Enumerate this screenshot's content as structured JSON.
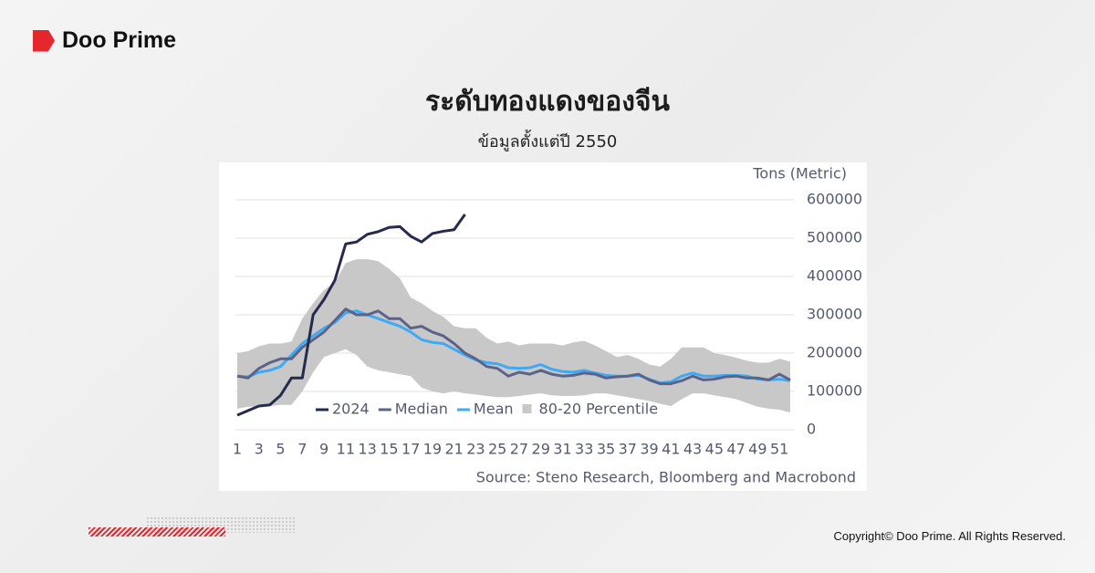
{
  "brand": "Doo Prime",
  "copyright": "Copyright© Doo Prime. All Rights Reserved.",
  "chart_data": {
    "type": "line",
    "title": "ระดับทองแดงของจีน",
    "subtitle": "ข้อมูลตั้งแต่ปี 2550",
    "y_label": "Tons (Metric)",
    "source": "Source: Steno Research, Bloomberg and Macrobond",
    "x": [
      1,
      2,
      3,
      4,
      5,
      6,
      7,
      8,
      9,
      10,
      11,
      12,
      13,
      14,
      15,
      16,
      17,
      18,
      19,
      20,
      21,
      22,
      23,
      24,
      25,
      26,
      27,
      28,
      29,
      30,
      31,
      32,
      33,
      34,
      35,
      36,
      37,
      38,
      39,
      40,
      41,
      42,
      43,
      44,
      45,
      46,
      47,
      48,
      49,
      50,
      51,
      52
    ],
    "xlim": [
      1,
      52
    ],
    "xticks": [
      1,
      3,
      5,
      7,
      9,
      11,
      13,
      15,
      17,
      19,
      21,
      23,
      25,
      27,
      29,
      31,
      33,
      35,
      37,
      39,
      41,
      43,
      45,
      47,
      49,
      51
    ],
    "ylim": [
      0,
      600000
    ],
    "yticks": [
      0,
      100000,
      200000,
      300000,
      400000,
      500000,
      600000
    ],
    "grid": true,
    "series": [
      {
        "name": "2024",
        "color": "#262a4f",
        "values": [
          38000,
          50000,
          62000,
          65000,
          90000,
          135000,
          135000,
          300000,
          340000,
          390000,
          485000,
          490000,
          510000,
          517000,
          528000,
          530000,
          505000,
          490000,
          512000,
          518000,
          522000,
          562000,
          null,
          null,
          null,
          null,
          null,
          null,
          null,
          null,
          null,
          null,
          null,
          null,
          null,
          null,
          null,
          null,
          null,
          null,
          null,
          null,
          null,
          null,
          null,
          null,
          null,
          null,
          null,
          null,
          null,
          null
        ]
      },
      {
        "name": "Median",
        "color": "#5b6389",
        "values": [
          140000,
          135000,
          160000,
          175000,
          185000,
          185000,
          215000,
          235000,
          255000,
          285000,
          315000,
          300000,
          300000,
          310000,
          290000,
          290000,
          265000,
          270000,
          255000,
          245000,
          225000,
          200000,
          185000,
          165000,
          160000,
          140000,
          150000,
          145000,
          155000,
          145000,
          140000,
          142000,
          148000,
          145000,
          135000,
          138000,
          140000,
          145000,
          130000,
          120000,
          120000,
          128000,
          140000,
          130000,
          132000,
          138000,
          140000,
          135000,
          135000,
          130000,
          145000,
          130000
        ]
      },
      {
        "name": "Mean",
        "color": "#3fa9f5",
        "values": [
          140000,
          138000,
          150000,
          155000,
          165000,
          195000,
          225000,
          245000,
          265000,
          280000,
          305000,
          310000,
          300000,
          290000,
          280000,
          270000,
          255000,
          235000,
          228000,
          225000,
          210000,
          195000,
          182000,
          175000,
          172000,
          162000,
          160000,
          162000,
          170000,
          158000,
          152000,
          150000,
          155000,
          148000,
          142000,
          140000,
          140000,
          142000,
          132000,
          122000,
          125000,
          140000,
          148000,
          140000,
          140000,
          142000,
          142000,
          140000,
          132000,
          130000,
          132000,
          128000
        ]
      },
      {
        "name": "80-20 Percentile",
        "color": "#c8c8c8",
        "type": "band",
        "low": [
          55000,
          60000,
          60000,
          62000,
          65000,
          65000,
          100000,
          150000,
          190000,
          200000,
          210000,
          195000,
          165000,
          155000,
          150000,
          145000,
          140000,
          110000,
          100000,
          95000,
          100000,
          95000,
          92000,
          88000,
          85000,
          85000,
          88000,
          92000,
          95000,
          90000,
          88000,
          88000,
          90000,
          95000,
          95000,
          90000,
          85000,
          80000,
          75000,
          68000,
          62000,
          80000,
          95000,
          95000,
          90000,
          85000,
          80000,
          70000,
          60000,
          55000,
          52000,
          45000
        ],
        "high": [
          200000,
          205000,
          218000,
          225000,
          225000,
          230000,
          290000,
          330000,
          365000,
          385000,
          435000,
          445000,
          445000,
          440000,
          420000,
          395000,
          345000,
          330000,
          310000,
          295000,
          270000,
          265000,
          265000,
          240000,
          225000,
          230000,
          220000,
          225000,
          225000,
          225000,
          220000,
          228000,
          232000,
          220000,
          205000,
          190000,
          195000,
          185000,
          170000,
          165000,
          185000,
          215000,
          215000,
          215000,
          200000,
          195000,
          188000,
          180000,
          175000,
          175000,
          185000,
          178000
        ]
      }
    ]
  }
}
